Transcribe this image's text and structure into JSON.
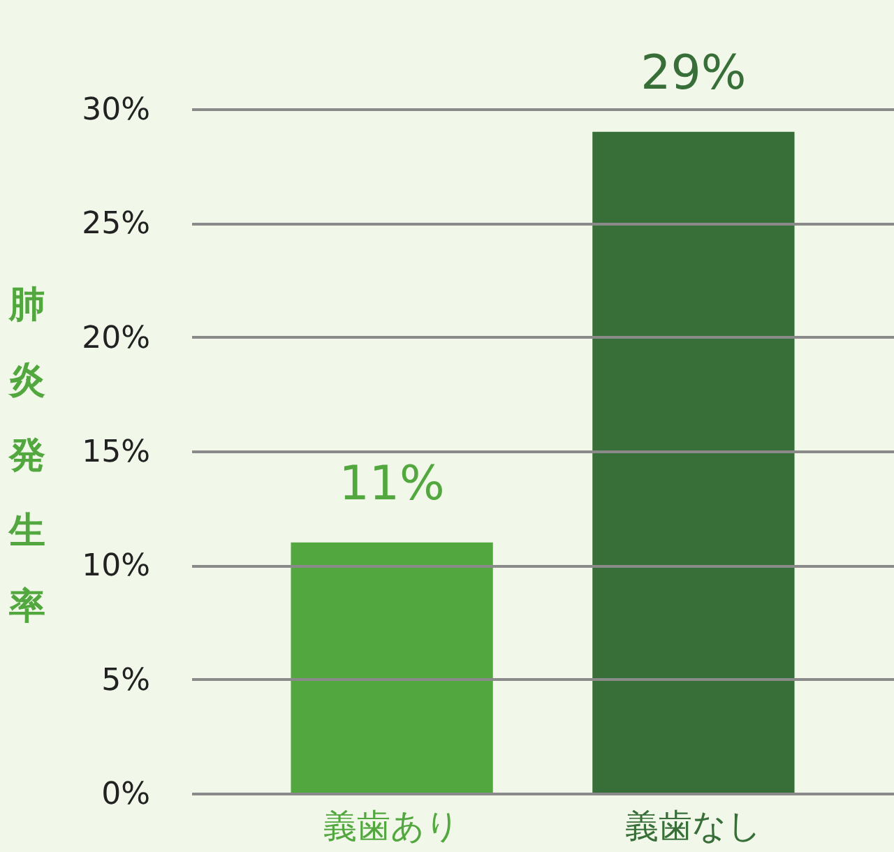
{
  "chart_data": {
    "type": "bar",
    "ylabel": "肺炎発生率",
    "categories": [
      "義歯あり",
      "義歯なし"
    ],
    "values": [
      11,
      29
    ],
    "colors": [
      "#52a83f",
      "#386f39"
    ],
    "value_labels": [
      "11%",
      "29%"
    ],
    "ylim": [
      0,
      30
    ],
    "yticks": [
      {
        "value": 0,
        "label": "0%"
      },
      {
        "value": 5,
        "label": "5%"
      },
      {
        "value": 10,
        "label": "10%"
      },
      {
        "value": 15,
        "label": "15%"
      },
      {
        "value": 20,
        "label": "20%"
      },
      {
        "value": 25,
        "label": "25%"
      },
      {
        "value": 30,
        "label": "30%"
      }
    ],
    "grid": "y"
  }
}
